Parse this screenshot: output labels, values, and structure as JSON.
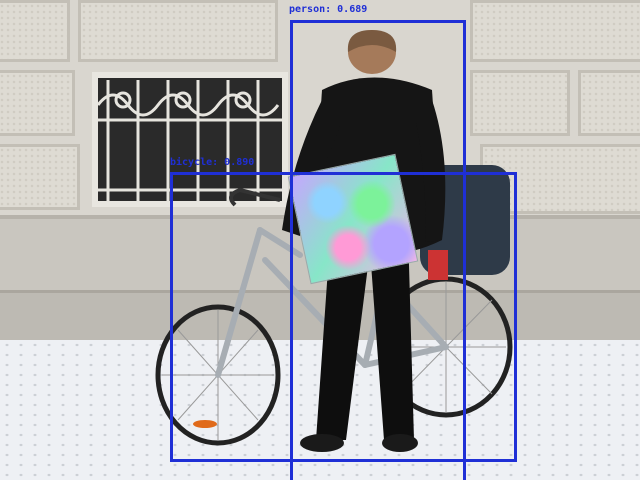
{
  "detections": [
    {
      "label": "person: 0.689",
      "color": "#1f2fd6"
    },
    {
      "label": "bicycle: 0.890",
      "color": "#1f2fd6"
    }
  ],
  "scene": {
    "objects": [
      "stone-wall",
      "barred-window",
      "bicycle",
      "person",
      "adversarial-patch",
      "snow"
    ]
  }
}
